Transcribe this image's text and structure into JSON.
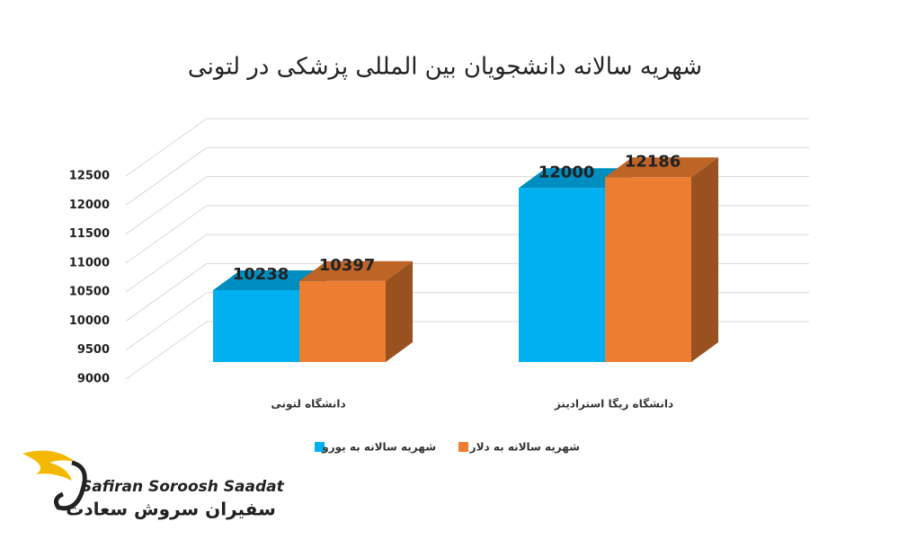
{
  "chart_data": {
    "type": "bar3d",
    "title": "شهریه سالانه دانشجویان بین المللی پزشکی در لتونی",
    "categories": [
      "دانشگاه لتونی",
      "دانشگاه ریگا استرادینز"
    ],
    "series": [
      {
        "name": "شهریه سالانه به یورو",
        "color": "#00b0f0",
        "values": [
          10238,
          12000
        ]
      },
      {
        "name": "شهریه سالانه به دلار",
        "color": "#ed7d31",
        "values": [
          10397,
          12186
        ]
      }
    ],
    "ylim": [
      9000,
      12500
    ],
    "yticks": [
      9000,
      9500,
      10000,
      10500,
      11000,
      11500,
      12000,
      12500
    ],
    "grid": true
  },
  "logo": {
    "name": "Safiran Soroosh Saadat",
    "name_fa": "سفیران سروش سعادت"
  }
}
